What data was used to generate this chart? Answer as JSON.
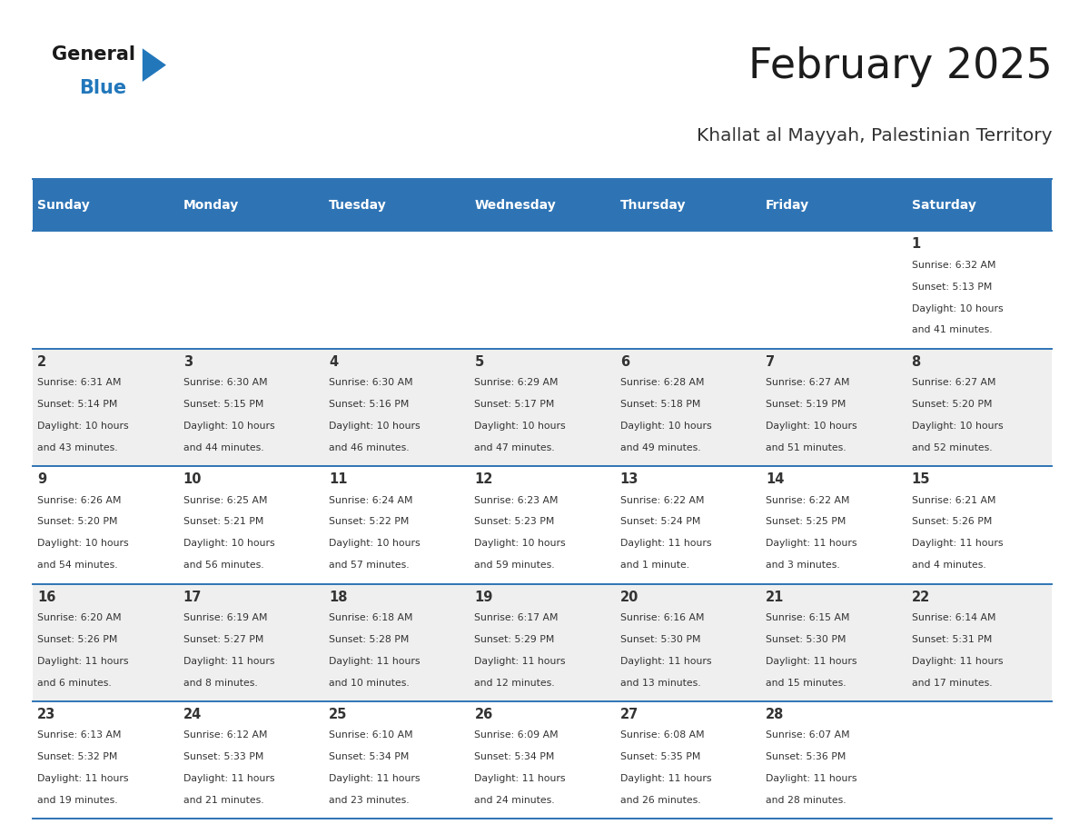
{
  "title": "February 2025",
  "subtitle": "Khallat al Mayyah, Palestinian Territory",
  "header_color": "#2E74B5",
  "header_text_color": "#FFFFFF",
  "bg_color": "#FFFFFF",
  "cell_bg_even": "#EFEFEF",
  "cell_bg_odd": "#FFFFFF",
  "day_headers": [
    "Sunday",
    "Monday",
    "Tuesday",
    "Wednesday",
    "Thursday",
    "Friday",
    "Saturday"
  ],
  "days": [
    {
      "day": 1,
      "col": 6,
      "row": 0,
      "sunrise": "6:32 AM",
      "sunset": "5:13 PM",
      "daylight_hours": 10,
      "daylight_minutes": 41
    },
    {
      "day": 2,
      "col": 0,
      "row": 1,
      "sunrise": "6:31 AM",
      "sunset": "5:14 PM",
      "daylight_hours": 10,
      "daylight_minutes": 43
    },
    {
      "day": 3,
      "col": 1,
      "row": 1,
      "sunrise": "6:30 AM",
      "sunset": "5:15 PM",
      "daylight_hours": 10,
      "daylight_minutes": 44
    },
    {
      "day": 4,
      "col": 2,
      "row": 1,
      "sunrise": "6:30 AM",
      "sunset": "5:16 PM",
      "daylight_hours": 10,
      "daylight_minutes": 46
    },
    {
      "day": 5,
      "col": 3,
      "row": 1,
      "sunrise": "6:29 AM",
      "sunset": "5:17 PM",
      "daylight_hours": 10,
      "daylight_minutes": 47
    },
    {
      "day": 6,
      "col": 4,
      "row": 1,
      "sunrise": "6:28 AM",
      "sunset": "5:18 PM",
      "daylight_hours": 10,
      "daylight_minutes": 49
    },
    {
      "day": 7,
      "col": 5,
      "row": 1,
      "sunrise": "6:27 AM",
      "sunset": "5:19 PM",
      "daylight_hours": 10,
      "daylight_minutes": 51
    },
    {
      "day": 8,
      "col": 6,
      "row": 1,
      "sunrise": "6:27 AM",
      "sunset": "5:20 PM",
      "daylight_hours": 10,
      "daylight_minutes": 52
    },
    {
      "day": 9,
      "col": 0,
      "row": 2,
      "sunrise": "6:26 AM",
      "sunset": "5:20 PM",
      "daylight_hours": 10,
      "daylight_minutes": 54
    },
    {
      "day": 10,
      "col": 1,
      "row": 2,
      "sunrise": "6:25 AM",
      "sunset": "5:21 PM",
      "daylight_hours": 10,
      "daylight_minutes": 56
    },
    {
      "day": 11,
      "col": 2,
      "row": 2,
      "sunrise": "6:24 AM",
      "sunset": "5:22 PM",
      "daylight_hours": 10,
      "daylight_minutes": 57
    },
    {
      "day": 12,
      "col": 3,
      "row": 2,
      "sunrise": "6:23 AM",
      "sunset": "5:23 PM",
      "daylight_hours": 10,
      "daylight_minutes": 59
    },
    {
      "day": 13,
      "col": 4,
      "row": 2,
      "sunrise": "6:22 AM",
      "sunset": "5:24 PM",
      "daylight_hours": 11,
      "daylight_minutes": 1
    },
    {
      "day": 14,
      "col": 5,
      "row": 2,
      "sunrise": "6:22 AM",
      "sunset": "5:25 PM",
      "daylight_hours": 11,
      "daylight_minutes": 3
    },
    {
      "day": 15,
      "col": 6,
      "row": 2,
      "sunrise": "6:21 AM",
      "sunset": "5:26 PM",
      "daylight_hours": 11,
      "daylight_minutes": 4
    },
    {
      "day": 16,
      "col": 0,
      "row": 3,
      "sunrise": "6:20 AM",
      "sunset": "5:26 PM",
      "daylight_hours": 11,
      "daylight_minutes": 6
    },
    {
      "day": 17,
      "col": 1,
      "row": 3,
      "sunrise": "6:19 AM",
      "sunset": "5:27 PM",
      "daylight_hours": 11,
      "daylight_minutes": 8
    },
    {
      "day": 18,
      "col": 2,
      "row": 3,
      "sunrise": "6:18 AM",
      "sunset": "5:28 PM",
      "daylight_hours": 11,
      "daylight_minutes": 10
    },
    {
      "day": 19,
      "col": 3,
      "row": 3,
      "sunrise": "6:17 AM",
      "sunset": "5:29 PM",
      "daylight_hours": 11,
      "daylight_minutes": 12
    },
    {
      "day": 20,
      "col": 4,
      "row": 3,
      "sunrise": "6:16 AM",
      "sunset": "5:30 PM",
      "daylight_hours": 11,
      "daylight_minutes": 13
    },
    {
      "day": 21,
      "col": 5,
      "row": 3,
      "sunrise": "6:15 AM",
      "sunset": "5:30 PM",
      "daylight_hours": 11,
      "daylight_minutes": 15
    },
    {
      "day": 22,
      "col": 6,
      "row": 3,
      "sunrise": "6:14 AM",
      "sunset": "5:31 PM",
      "daylight_hours": 11,
      "daylight_minutes": 17
    },
    {
      "day": 23,
      "col": 0,
      "row": 4,
      "sunrise": "6:13 AM",
      "sunset": "5:32 PM",
      "daylight_hours": 11,
      "daylight_minutes": 19
    },
    {
      "day": 24,
      "col": 1,
      "row": 4,
      "sunrise": "6:12 AM",
      "sunset": "5:33 PM",
      "daylight_hours": 11,
      "daylight_minutes": 21
    },
    {
      "day": 25,
      "col": 2,
      "row": 4,
      "sunrise": "6:10 AM",
      "sunset": "5:34 PM",
      "daylight_hours": 11,
      "daylight_minutes": 23
    },
    {
      "day": 26,
      "col": 3,
      "row": 4,
      "sunrise": "6:09 AM",
      "sunset": "5:34 PM",
      "daylight_hours": 11,
      "daylight_minutes": 24
    },
    {
      "day": 27,
      "col": 4,
      "row": 4,
      "sunrise": "6:08 AM",
      "sunset": "5:35 PM",
      "daylight_hours": 11,
      "daylight_minutes": 26
    },
    {
      "day": 28,
      "col": 5,
      "row": 4,
      "sunrise": "6:07 AM",
      "sunset": "5:36 PM",
      "daylight_hours": 11,
      "daylight_minutes": 28
    }
  ],
  "logo_color_general": "#1a1a1a",
  "logo_color_blue": "#2277BB",
  "logo_triangle_color": "#2277BB",
  "line_color": "#2E74B5"
}
